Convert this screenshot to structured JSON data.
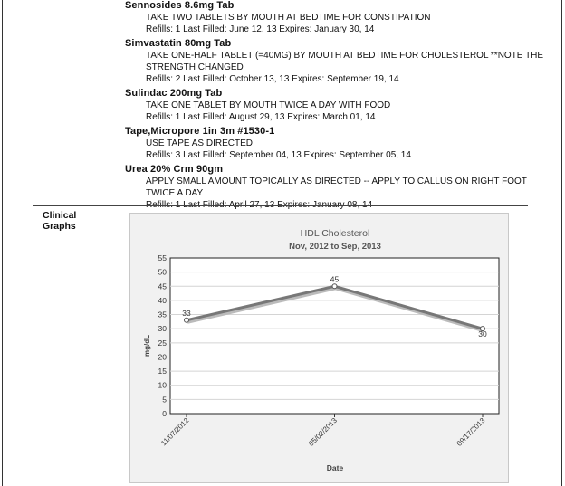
{
  "medications": [
    {
      "name": "Sennosides 8.6mg Tab",
      "instructions": [
        "TAKE TWO TABLETS BY MOUTH AT BEDTIME FOR CONSTIPATION"
      ],
      "refills": "Refills: 1   Last Filled: June 12, 13   Expires: January 30, 14"
    },
    {
      "name": "Simvastatin 80mg Tab",
      "instructions": [
        "TAKE ONE-HALF TABLET (=40MG) BY MOUTH AT BEDTIME FOR CHOLESTEROL **NOTE THE",
        "STRENGTH CHANGED"
      ],
      "refills": "Refills: 2   Last Filled: October 13, 13   Expires: September 19, 14"
    },
    {
      "name": "Sulindac 200mg Tab",
      "instructions": [
        "TAKE ONE TABLET BY MOUTH TWICE A DAY WITH FOOD"
      ],
      "refills": "Refills: 1   Last Filled: August 29, 13   Expires: March 01, 14"
    },
    {
      "name": "Tape,Micropore 1in 3m #1530-1",
      "instructions": [
        "USE TAPE AS DIRECTED"
      ],
      "refills": "Refills: 3   Last Filled: September 04, 13   Expires: September 05, 14"
    },
    {
      "name": "Urea 20% Crm 90gm",
      "instructions": [
        "APPLY SMALL AMOUNT TOPICALLY AS DIRECTED -- APPLY TO CALLUS ON RIGHT FOOT",
        "TWICE A DAY"
      ],
      "refills": "Refills: 1   Last Filled: April 27, 13   Expires: January 08, 14"
    }
  ],
  "section": {
    "line1": "Clinical",
    "line2": "Graphs"
  },
  "chart_data": {
    "type": "line",
    "title": "HDL Cholesterol",
    "subtitle": "Nov, 2012 to Sep, 2013",
    "xlabel": "Date",
    "ylabel": "mg/dL",
    "categories": [
      "11/07/2012",
      "05/02/2013",
      "09/17/2013"
    ],
    "values": [
      33,
      45,
      30
    ],
    "ylim": [
      0,
      55
    ],
    "yticks": [
      0,
      5,
      10,
      15,
      20,
      25,
      30,
      35,
      40,
      45,
      50,
      55
    ],
    "grid": true,
    "series_color": "#777777"
  }
}
